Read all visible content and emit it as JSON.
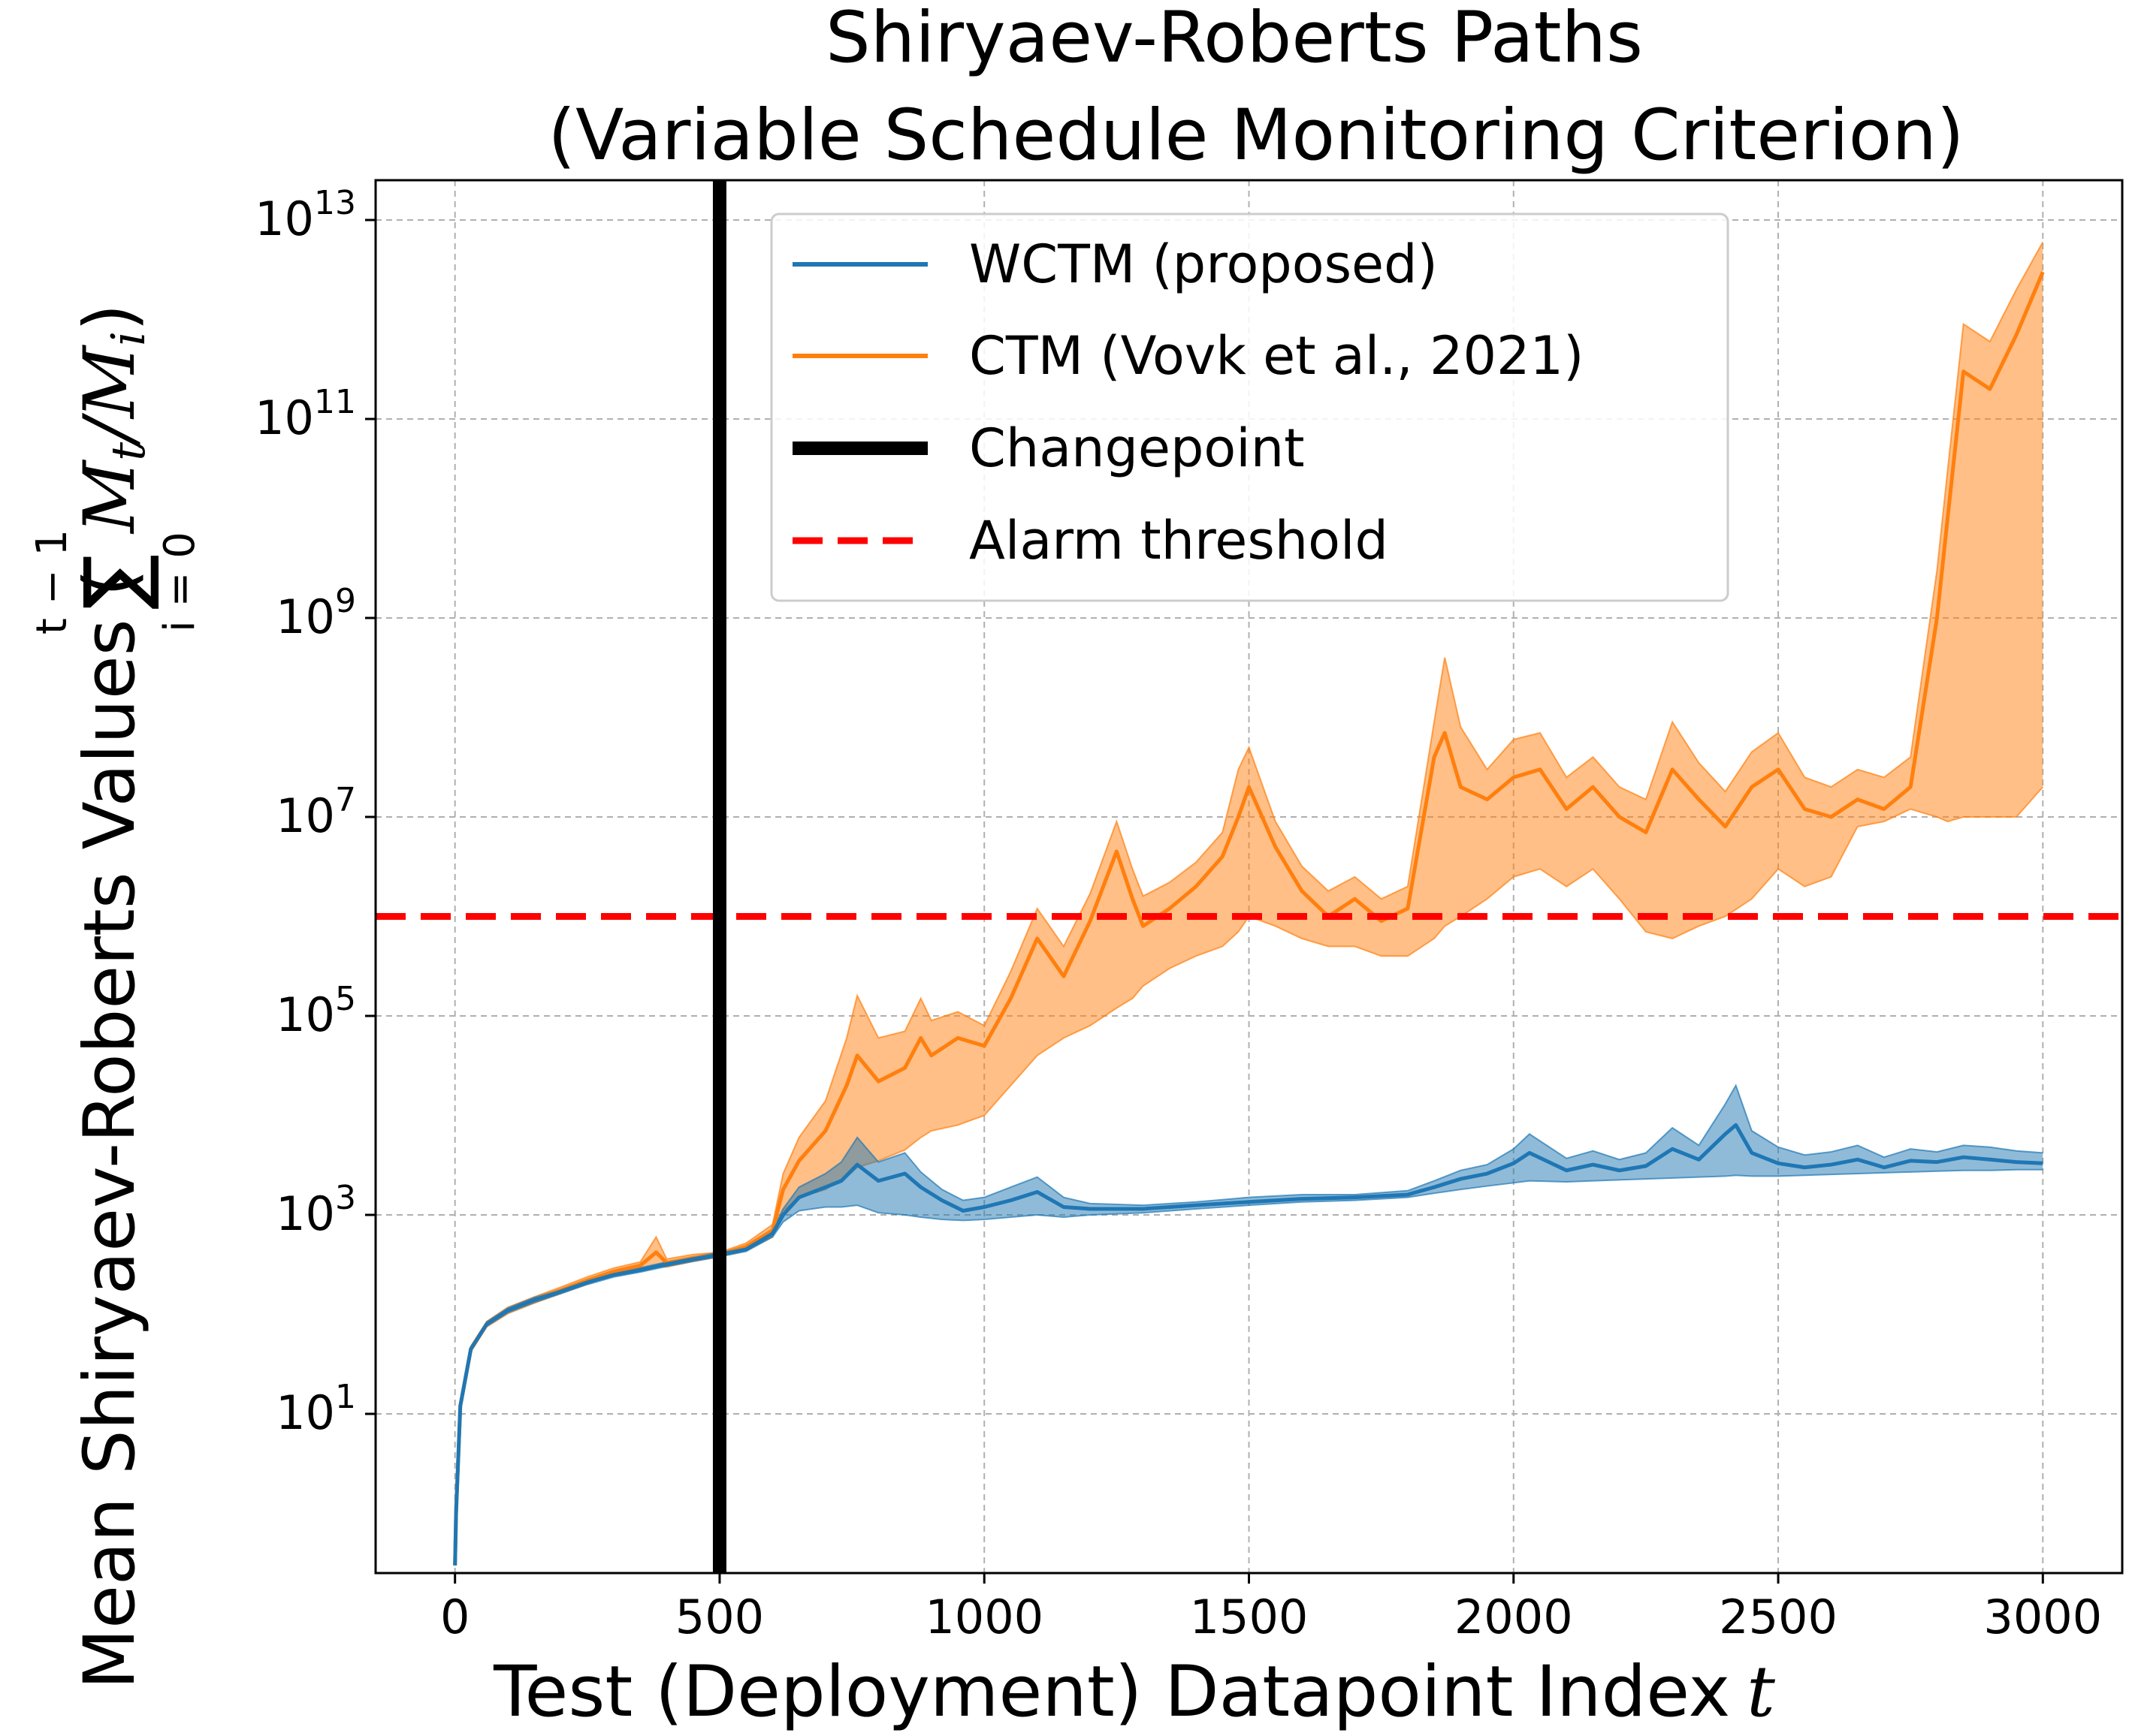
{
  "chart_data": {
    "type": "line",
    "title_lines": [
      "Shiryaev-Roberts Paths",
      "(Variable Schedule Monitoring Criterion)"
    ],
    "xlabel": "Test (Deployment) Datapoint Index",
    "xlabel_var": "t",
    "ylabel": "Mean Shiryaev-Roberts Values (",
    "ylabel_sum_top": "t − 1",
    "ylabel_sum_bottom": "i = 0",
    "ylabel_expr": "M",
    "ylabel_sub_t": "t",
    "ylabel_slash": "/M",
    "ylabel_sub_i": "i",
    "ylabel_close": ")",
    "y_scale": "log",
    "xlim": [
      -150,
      3150
    ],
    "ylim_log10": [
      -0.6,
      13.4
    ],
    "x_ticks": [
      0,
      500,
      1000,
      1500,
      2000,
      2500,
      3000
    ],
    "y_ticks": [
      {
        "base": "10",
        "exp": "1",
        "value": 10.0
      },
      {
        "base": "10",
        "exp": "3",
        "value": 1000.0
      },
      {
        "base": "10",
        "exp": "5",
        "value": 100000.0
      },
      {
        "base": "10",
        "exp": "7",
        "value": 10000000.0
      },
      {
        "base": "10",
        "exp": "9",
        "value": 1000000000.0
      },
      {
        "base": "10",
        "exp": "11",
        "value": 100000000000.0
      },
      {
        "base": "10",
        "exp": "13",
        "value": 10000000000000.0
      }
    ],
    "grid": true,
    "legend_position": "top-center",
    "changepoint_x": 500,
    "alarm_threshold": 1000000.0,
    "series": [
      {
        "name": "WCTM (proposed)",
        "color": "#1f77b4",
        "x": [
          0,
          2,
          10,
          30,
          60,
          100,
          150,
          200,
          250,
          300,
          350,
          400,
          450,
          500,
          550,
          600,
          620,
          650,
          700,
          730,
          760,
          800,
          850,
          880,
          920,
          960,
          1000,
          1050,
          1100,
          1150,
          1200,
          1300,
          1400,
          1500,
          1600,
          1700,
          1800,
          1850,
          1900,
          1950,
          2000,
          2030,
          2100,
          2150,
          2200,
          2250,
          2300,
          2350,
          2400,
          2420,
          2450,
          2500,
          2550,
          2600,
          2650,
          2700,
          2750,
          2800,
          2850,
          2900,
          2950,
          3000
        ],
        "mean": [
          0.3,
          1,
          12,
          45,
          80,
          110,
          140,
          170,
          210,
          250,
          280,
          320,
          360,
          400,
          450,
          650,
          1000,
          1500,
          1900,
          2200,
          3200,
          2200,
          2600,
          1900,
          1400,
          1100,
          1200,
          1400,
          1700,
          1200,
          1150,
          1150,
          1250,
          1350,
          1450,
          1500,
          1600,
          1900,
          2300,
          2600,
          3300,
          4200,
          2800,
          3200,
          2800,
          3100,
          4600,
          3600,
          6500,
          8000,
          4200,
          3300,
          3000,
          3200,
          3600,
          3000,
          3500,
          3400,
          3800,
          3600,
          3400,
          3300
        ],
        "upper": [
          0.3,
          1,
          13,
          47,
          84,
          116,
          148,
          178,
          220,
          262,
          294,
          336,
          378,
          420,
          470,
          700,
          1150,
          1900,
          2600,
          3400,
          6000,
          3400,
          4200,
          2700,
          1800,
          1400,
          1500,
          1900,
          2400,
          1500,
          1300,
          1250,
          1350,
          1500,
          1600,
          1600,
          1750,
          2200,
          2800,
          3200,
          4600,
          6500,
          3700,
          4400,
          3600,
          4200,
          7500,
          5000,
          13000,
          20000,
          7000,
          4800,
          4000,
          4300,
          5000,
          3800,
          4600,
          4300,
          5000,
          4800,
          4400,
          4200
        ],
        "lower": [
          0.3,
          1,
          11,
          43,
          76,
          104,
          132,
          162,
          200,
          238,
          266,
          304,
          342,
          380,
          430,
          600,
          850,
          1100,
          1200,
          1200,
          1250,
          1050,
          1000,
          950,
          900,
          880,
          900,
          950,
          1000,
          950,
          1000,
          1050,
          1150,
          1250,
          1350,
          1400,
          1500,
          1650,
          1800,
          1950,
          2100,
          2200,
          2150,
          2200,
          2250,
          2300,
          2350,
          2400,
          2450,
          2500,
          2450,
          2450,
          2500,
          2550,
          2600,
          2650,
          2700,
          2750,
          2800,
          2800,
          2850,
          2850
        ]
      },
      {
        "name": "CTM (Vovk et al., 2021)",
        "color": "#ff7f0e",
        "x": [
          0,
          2,
          10,
          30,
          60,
          100,
          150,
          200,
          250,
          300,
          350,
          380,
          400,
          450,
          500,
          550,
          600,
          620,
          650,
          700,
          740,
          760,
          800,
          850,
          880,
          900,
          950,
          1000,
          1050,
          1100,
          1150,
          1200,
          1250,
          1280,
          1300,
          1350,
          1400,
          1450,
          1480,
          1500,
          1550,
          1600,
          1650,
          1700,
          1750,
          1800,
          1850,
          1870,
          1900,
          1950,
          2000,
          2050,
          2100,
          2150,
          2200,
          2250,
          2300,
          2350,
          2400,
          2450,
          2500,
          2550,
          2600,
          2650,
          2700,
          2750,
          2800,
          2820,
          2850,
          2900,
          2950,
          3000
        ],
        "mean": [
          0.3,
          1,
          12,
          45,
          80,
          110,
          140,
          175,
          220,
          270,
          310,
          420,
          330,
          370,
          400,
          480,
          700,
          1800,
          3500,
          7000,
          20000,
          40000,
          22000,
          30000,
          60000,
          40000,
          60000,
          50000,
          150000,
          600000,
          250000,
          900000,
          4500000,
          1500000,
          800000,
          1200000,
          2000000,
          4000000,
          10000000,
          20000000,
          5000000,
          1800000,
          1000000,
          1500000,
          900000,
          1200000,
          40000000,
          70000000,
          20000000,
          15000000,
          25000000,
          30000000,
          12000000,
          20000000,
          10000000,
          7000000,
          30000000,
          15000000,
          8000000,
          20000000,
          30000000,
          12000000,
          10000000,
          15000000,
          12000000,
          20000000,
          1000000000,
          10000000000,
          300000000000,
          200000000000,
          700000000000,
          3000000000000
        ],
        "upper": [
          0.3,
          1,
          13,
          48,
          85,
          118,
          150,
          188,
          238,
          292,
          336,
          600,
          360,
          400,
          420,
          520,
          800,
          2600,
          6000,
          14000,
          60000,
          160000,
          60000,
          70000,
          150000,
          90000,
          110000,
          80000,
          280000,
          1200000,
          500000,
          1700000,
          9000000,
          3000000,
          1600000,
          2200000,
          3500000,
          7000000,
          30000000,
          50000000,
          9000000,
          3200000,
          1800000,
          2500000,
          1500000,
          2000000,
          90000000,
          400000000,
          80000000,
          30000000,
          60000000,
          70000000,
          25000000,
          40000000,
          20000000,
          15000000,
          90000000,
          35000000,
          18000000,
          45000000,
          70000000,
          25000000,
          20000000,
          30000000,
          25000000,
          40000000,
          3000000000,
          30000000000,
          900000000000,
          600000000000,
          2000000000000,
          6000000000000
        ],
        "lower": [
          0.3,
          1,
          11,
          42,
          75,
          102,
          130,
          162,
          202,
          248,
          284,
          300,
          300,
          340,
          380,
          440,
          600,
          1100,
          1500,
          1800,
          2400,
          3000,
          3500,
          4500,
          6000,
          7000,
          8000,
          10000,
          20000,
          40000,
          60000,
          80000,
          120000,
          150000,
          200000,
          300000,
          400000,
          500000,
          700000,
          1000000,
          800000,
          600000,
          500000,
          500000,
          400000,
          400000,
          600000,
          800000,
          1000000,
          1500000,
          2500000,
          3000000,
          2000000,
          3000000,
          1500000,
          700000,
          600000,
          800000,
          1000000,
          1500000,
          3000000,
          2000000,
          2500000,
          8000000,
          9000000,
          12000000,
          10000000,
          9000000,
          10000000,
          10000000,
          10000000,
          20000000
        ]
      },
      {
        "name": "Changepoint",
        "color": "#000000"
      },
      {
        "name": "Alarm threshold",
        "color": "#ff0000"
      }
    ]
  }
}
